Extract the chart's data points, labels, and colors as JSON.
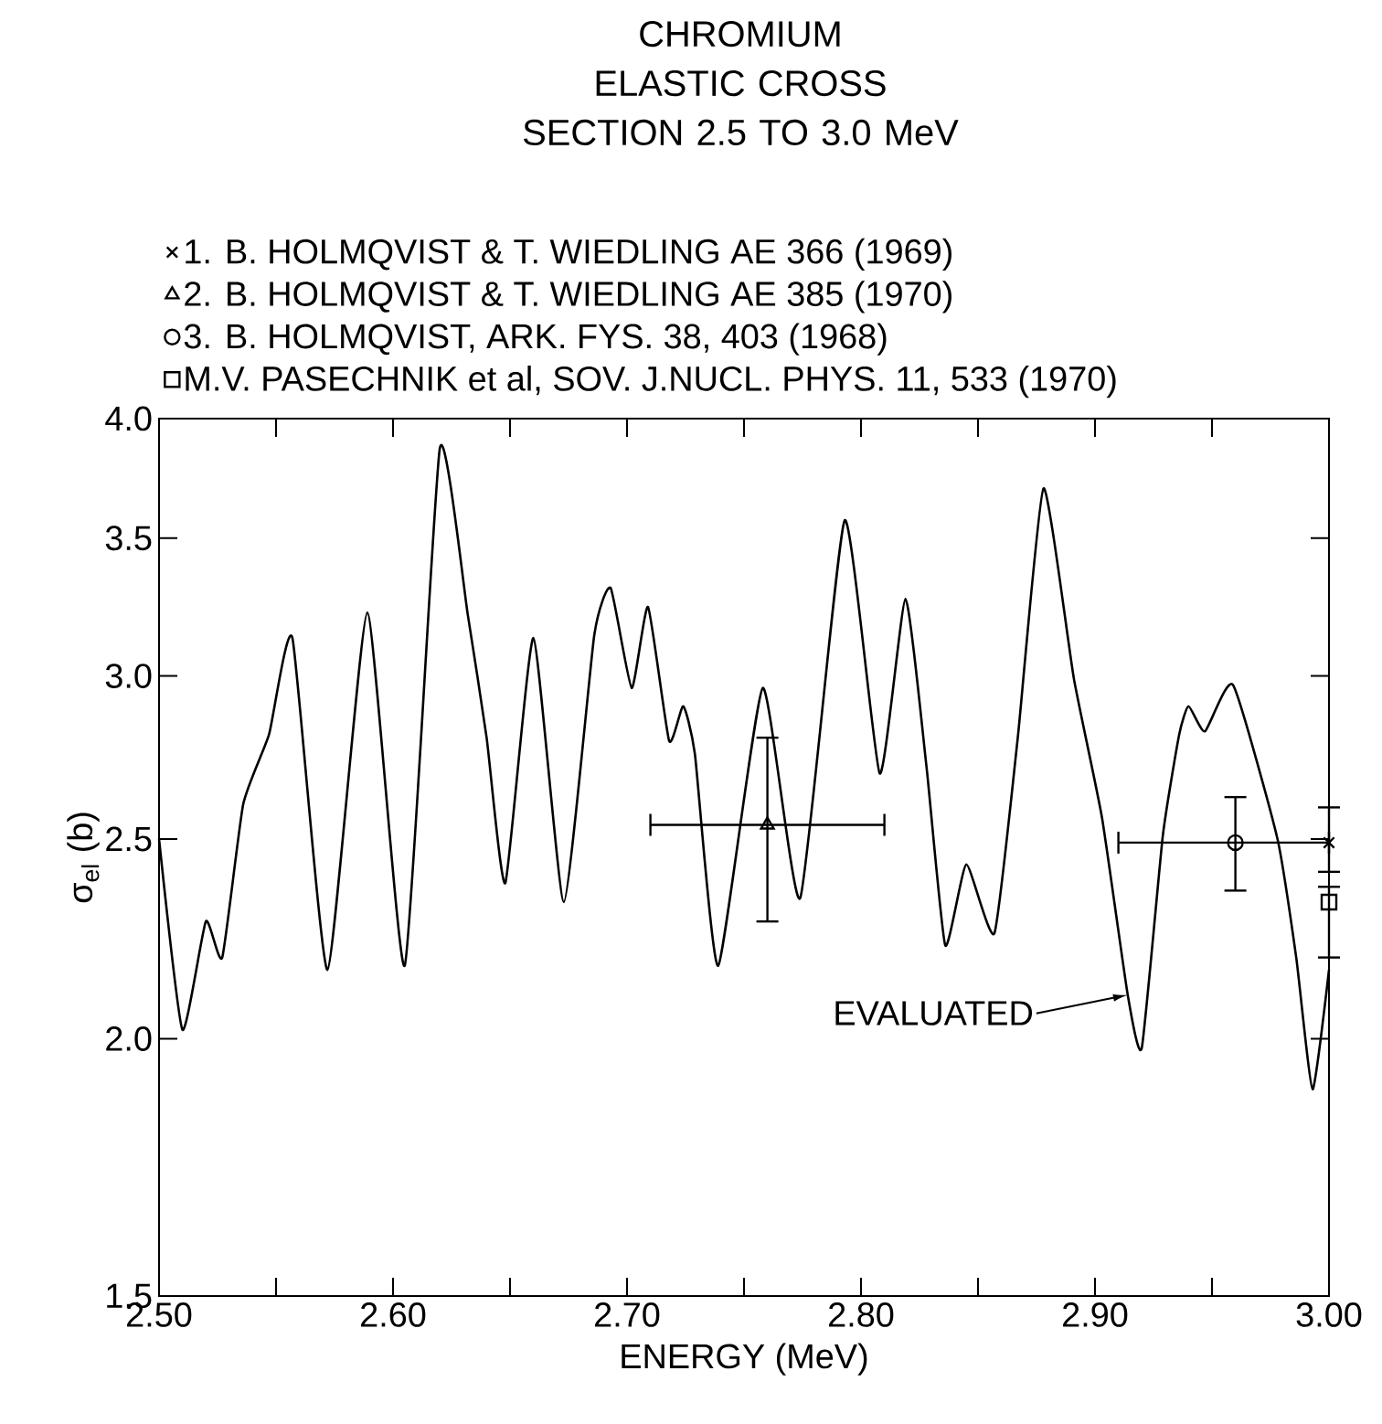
{
  "chart_data": {
    "type": "line",
    "title": "CHROMIUM",
    "subtitle": "ELASTIC CROSS SECTION 2.5 TO 3.0 MeV",
    "xlabel": "ENERGY (MeV)",
    "ylabel": "σ$_{el}$ (b)",
    "log": "y",
    "grid": false,
    "legend": "top",
    "xlim": [
      2.5,
      3.0
    ],
    "ylim": [
      1.5,
      4.0
    ],
    "xticks": [
      {
        "value": 2.5,
        "label": "2.50"
      },
      {
        "value": 2.55,
        "label": null
      },
      {
        "value": 2.6,
        "label": "2.60"
      },
      {
        "value": 2.65,
        "label": null
      },
      {
        "value": 2.7,
        "label": "2.70"
      },
      {
        "value": 2.75,
        "label": null
      },
      {
        "value": 2.8,
        "label": "2.80"
      },
      {
        "value": 2.85,
        "label": null
      },
      {
        "value": 2.9,
        "label": "2.90"
      },
      {
        "value": 2.95,
        "label": null
      },
      {
        "value": 3.0,
        "label": "3.00"
      }
    ],
    "yticks": [
      1.5,
      {
        "value": 2,
        "label": "2.0"
      },
      2.5,
      {
        "value": 3,
        "label": "3.0"
      },
      3.5,
      {
        "value": 4,
        "label": "4.0"
      }
    ],
    "annotations": [
      {
        "text": "EVALUATED",
        "x": 2.914,
        "y": 2.1
      }
    ],
    "series": [
      {
        "color": "#000000",
        "x": [
          2.5,
          2.51,
          2.52,
          2.527,
          2.536,
          2.547,
          2.557,
          2.572,
          2.589,
          2.605,
          2.62,
          2.632,
          2.64,
          2.648,
          2.66,
          2.673,
          2.686,
          2.693,
          2.702,
          2.709,
          2.718,
          2.724,
          2.729,
          2.739,
          2.758,
          2.774,
          2.793,
          2.808,
          2.819,
          2.828,
          2.836,
          2.845,
          2.857,
          2.867,
          2.878,
          2.891,
          2.903,
          2.914,
          2.92,
          2.929,
          2.936,
          2.94,
          2.947,
          2.959,
          2.978,
          2.986,
          2.993,
          3.0
        ],
        "values": [
          2.5,
          2.02,
          2.28,
          2.19,
          2.6,
          2.81,
          3.13,
          2.16,
          3.22,
          2.17,
          3.87,
          3.21,
          2.8,
          2.38,
          3.13,
          2.33,
          3.14,
          3.31,
          2.96,
          3.24,
          2.79,
          2.9,
          2.75,
          2.17,
          2.96,
          2.34,
          3.57,
          2.69,
          3.27,
          2.71,
          2.22,
          2.43,
          2.25,
          2.8,
          3.7,
          2.99,
          2.56,
          2.1,
          1.98,
          2.51,
          2.81,
          2.9,
          2.82,
          2.97,
          2.5,
          2.19,
          1.89,
          2.16
        ]
      },
      {
        "type": "scatter",
        "name": "1. B. HOLMQVIST & T. WIEDLING AE 366 (1969)",
        "color": "#000000",
        "marker": "cross",
        "x": [
          3.0
        ],
        "values": [
          2.49
        ],
        "errors": [
          [
            2.41,
            2.59
          ]
        ]
      },
      {
        "type": "scatter",
        "name": "2. B. HOLMQVIST & T. WIEDLING AE 385 (1970)",
        "color": "#000000",
        "marker": "triangle",
        "x": [
          2.76
        ],
        "values": [
          2.54
        ],
        "errors": [
          [
            2.28,
            2.8
          ]
        ],
        "xerrors": [
          0.05
        ]
      },
      {
        "type": "scatter",
        "name": "3. B. HOLMQVIST, ARK. FYS. 38, 403 (1968)",
        "color": "#000000",
        "marker": "circle",
        "x": [
          2.96
        ],
        "values": [
          2.49
        ],
        "errors": [
          [
            2.36,
            2.62
          ]
        ],
        "xerrors": [
          [
            2.91,
            3.0
          ]
        ]
      },
      {
        "type": "scatter",
        "name": "M.V. PASECHNIK et al, SOV. J.NUCL. PHYS. 11, 533 (1970)",
        "color": "#000000",
        "marker": "square",
        "x": [
          3.0
        ],
        "values": [
          2.33
        ],
        "errors": [
          [
            2.19,
            2.37
          ]
        ]
      }
    ]
  }
}
